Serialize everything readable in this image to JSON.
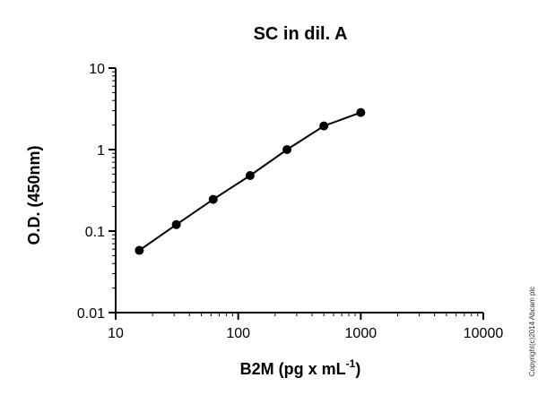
{
  "chart_data": {
    "type": "line",
    "title": "SC in dil. A",
    "xlabel": "B2M (pg x mL",
    "xlabel_superscript": "-1",
    "xlabel_suffix": ")",
    "ylabel": "O.D. (450nm)",
    "x_scale": "log",
    "y_scale": "log",
    "xlim": [
      10,
      10000
    ],
    "ylim": [
      0.01,
      10
    ],
    "x_ticks": [
      10,
      100,
      1000,
      10000
    ],
    "x_tick_labels": [
      "10",
      "100",
      "1000",
      "10000"
    ],
    "y_ticks": [
      0.01,
      0.1,
      1,
      10
    ],
    "y_tick_labels": [
      "0.01",
      "0.1",
      "1",
      "10"
    ],
    "grid": false,
    "legend": "none",
    "series": [
      {
        "x": [
          15.6,
          31.25,
          62.5,
          125,
          250,
          500,
          1000
        ],
        "y": [
          0.058,
          0.12,
          0.245,
          0.48,
          1.0,
          1.95,
          2.85
        ],
        "marker": "circle",
        "color": "#000000"
      }
    ]
  },
  "copyright": "Copyright(c)2014 Abcam plc"
}
